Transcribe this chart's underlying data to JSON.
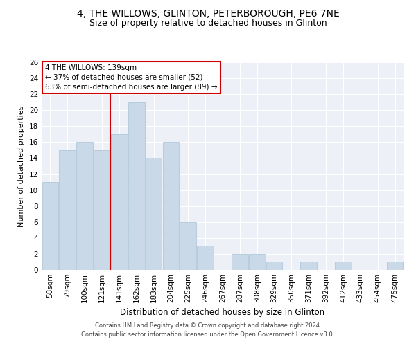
{
  "title1": "4, THE WILLOWS, GLINTON, PETERBOROUGH, PE6 7NE",
  "title2": "Size of property relative to detached houses in Glinton",
  "xlabel": "Distribution of detached houses by size in Glinton",
  "ylabel": "Number of detached properties",
  "categories": [
    "58sqm",
    "79sqm",
    "100sqm",
    "121sqm",
    "141sqm",
    "162sqm",
    "183sqm",
    "204sqm",
    "225sqm",
    "246sqm",
    "267sqm",
    "287sqm",
    "308sqm",
    "329sqm",
    "350sqm",
    "371sqm",
    "392sqm",
    "412sqm",
    "433sqm",
    "454sqm",
    "475sqm"
  ],
  "values": [
    11,
    15,
    16,
    15,
    17,
    21,
    14,
    16,
    6,
    3,
    0,
    2,
    2,
    1,
    0,
    1,
    0,
    1,
    0,
    0,
    1
  ],
  "bar_color": "#c9d9e8",
  "bar_edge_color": "#a8c4d8",
  "highlight_line_index": 4,
  "annotation_title": "4 THE WILLOWS: 139sqm",
  "annotation_line1": "← 37% of detached houses are smaller (52)",
  "annotation_line2": "63% of semi-detached houses are larger (89) →",
  "annotation_box_color": "#ffffff",
  "annotation_box_edge": "#cc0000",
  "ylim": [
    0,
    26
  ],
  "yticks": [
    0,
    2,
    4,
    6,
    8,
    10,
    12,
    14,
    16,
    18,
    20,
    22,
    24,
    26
  ],
  "footer1": "Contains HM Land Registry data © Crown copyright and database right 2024.",
  "footer2": "Contains public sector information licensed under the Open Government Licence v3.0.",
  "bg_color": "#edf1f7",
  "grid_color": "#ffffff",
  "title1_fontsize": 10,
  "title2_fontsize": 9,
  "ylabel_fontsize": 8,
  "xlabel_fontsize": 8.5,
  "tick_fontsize": 7.5,
  "ann_fontsize": 7.5,
  "footer_fontsize": 6
}
